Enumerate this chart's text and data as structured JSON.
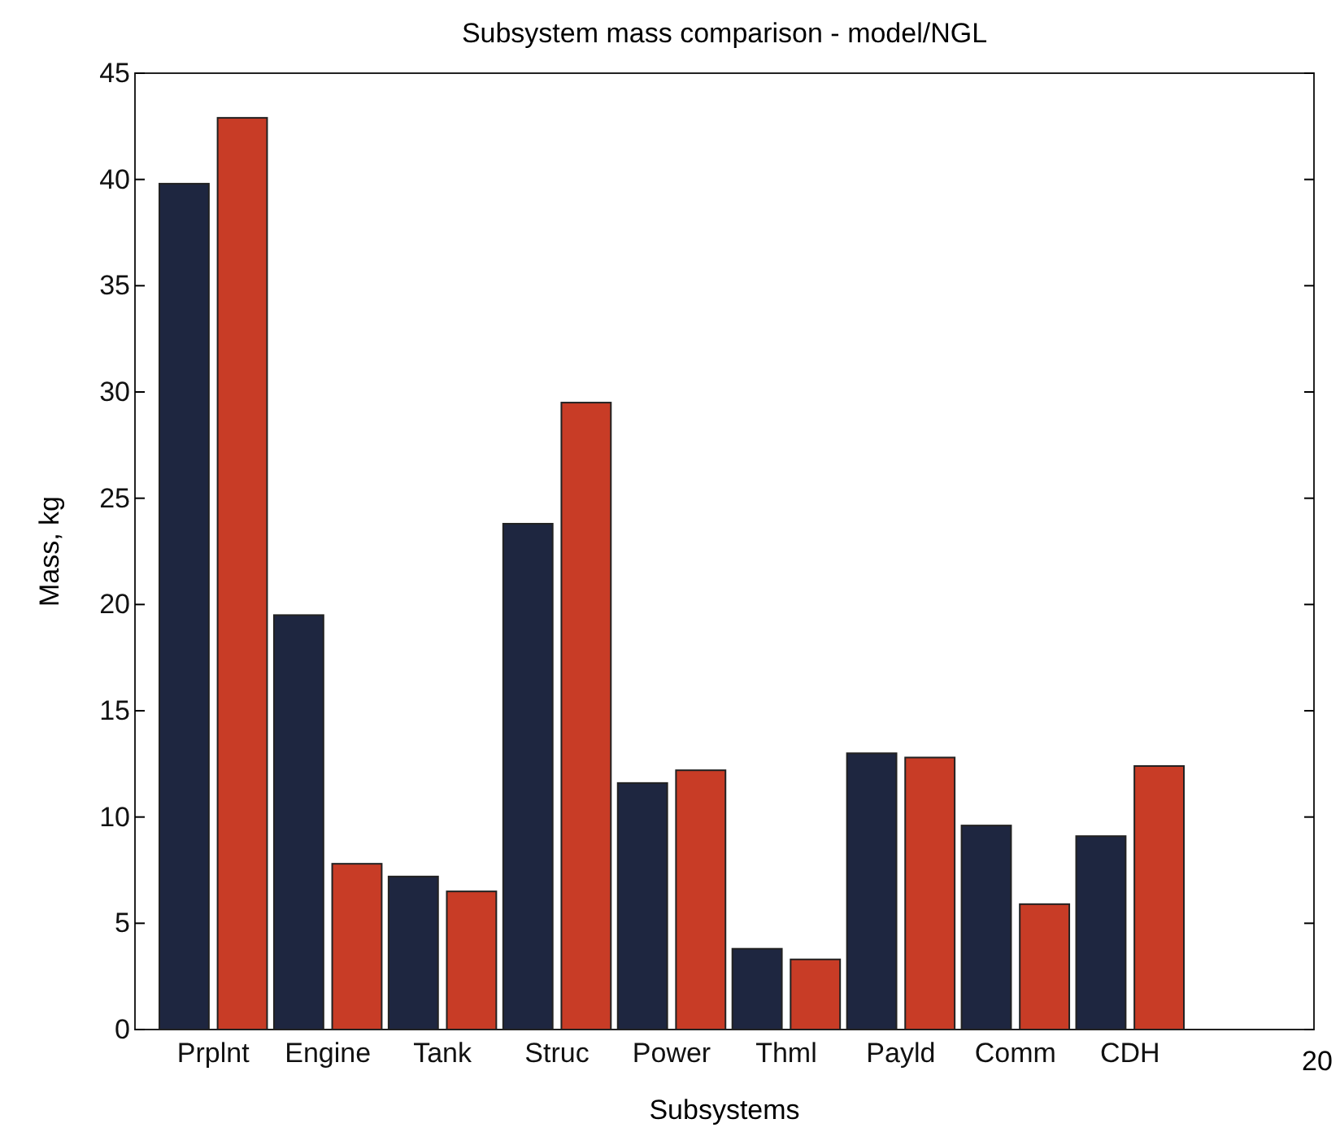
{
  "chart_data": {
    "type": "bar",
    "title": "Subsystem mass comparison - model/NGL",
    "xlabel": "Subsystems",
    "ylabel": "Mass, kg",
    "categories": [
      "Prplnt",
      "Engine",
      "Tank",
      "Struc",
      "Power",
      "Thml",
      "Payld",
      "Comm",
      "CDH"
    ],
    "series": [
      {
        "color": "#1e2640",
        "values": [
          39.8,
          19.5,
          7.2,
          23.8,
          11.6,
          3.8,
          13.0,
          9.6,
          9.1
        ]
      },
      {
        "color": "#c83c26",
        "values": [
          42.9,
          7.8,
          6.5,
          29.5,
          12.2,
          3.3,
          12.8,
          5.9,
          12.4
        ]
      }
    ],
    "ylim": [
      0,
      45
    ],
    "yticks": [
      0,
      5,
      10,
      15,
      20,
      25,
      30,
      35,
      40,
      45
    ],
    "grid": false,
    "annotations": [
      "20"
    ]
  }
}
